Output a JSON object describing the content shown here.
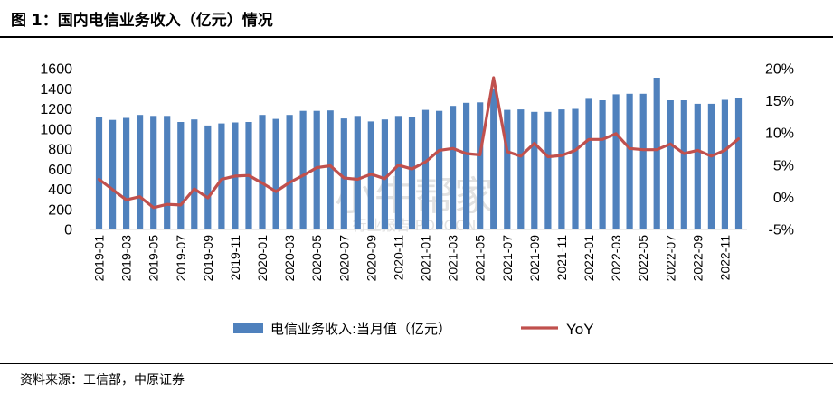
{
  "figure": {
    "title": "图 1：国内电信业务收入（亿元）情况",
    "source": "资料来源：工信部，中原证券",
    "watermark_main": "小牛帮家",
    "watermark_sub": "行业报告 POPOCN"
  },
  "colors": {
    "bar": "#4f81bd",
    "line": "#c0504d",
    "axis": "#d9d9d9"
  },
  "chart_data": {
    "type": "bar+line",
    "categories": [
      "2019-01",
      "2019-02",
      "2019-03",
      "2019-04",
      "2019-05",
      "2019-06",
      "2019-07",
      "2019-08",
      "2019-09",
      "2019-10",
      "2019-11",
      "2019-12",
      "2020-01",
      "2020-02",
      "2020-03",
      "2020-04",
      "2020-05",
      "2020-06",
      "2020-07",
      "2020-08",
      "2020-09",
      "2020-10",
      "2020-11",
      "2020-12",
      "2021-01",
      "2021-02",
      "2021-03",
      "2021-04",
      "2021-05",
      "2021-06",
      "2021-07",
      "2021-08",
      "2021-09",
      "2021-10",
      "2021-11",
      "2021-12",
      "2022-01",
      "2022-02",
      "2022-03",
      "2022-04",
      "2022-05",
      "2022-06",
      "2022-07",
      "2022-08",
      "2022-09",
      "2022-10",
      "2022-11",
      "2022-12"
    ],
    "x_tick_labels": [
      "2019-01",
      "2019-03",
      "2019-05",
      "2019-07",
      "2019-09",
      "2019-11",
      "2020-01",
      "2020-03",
      "2020-05",
      "2020-07",
      "2020-09",
      "2020-11",
      "2021-01",
      "2021-03",
      "2021-05",
      "2021-07",
      "2021-09",
      "2021-11",
      "2022-01",
      "2022-03",
      "2022-05",
      "2022-07",
      "2022-09",
      "2022-11"
    ],
    "series": [
      {
        "name": "电信业务收入:当月值（亿元）",
        "type": "bar",
        "axis": "left",
        "values": [
          1115,
          1090,
          1110,
          1140,
          1130,
          1130,
          1070,
          1095,
          1035,
          1055,
          1065,
          1070,
          1140,
          1100,
          1140,
          1180,
          1180,
          1185,
          1105,
          1130,
          1075,
          1095,
          1130,
          1115,
          1190,
          1180,
          1230,
          1260,
          1265,
          1395,
          1190,
          1195,
          1170,
          1170,
          1195,
          1200,
          1300,
          1285,
          1345,
          1350,
          1350,
          1510,
          1285,
          1285,
          1250,
          1250,
          1290,
          1305
        ]
      },
      {
        "name": "YoY",
        "type": "line",
        "axis": "right",
        "values": [
          2.8,
          1.2,
          -0.4,
          0.1,
          -1.6,
          -1.1,
          -1.2,
          1.3,
          -0.1,
          2.8,
          3.3,
          3.4,
          2.2,
          0.9,
          2.3,
          3.4,
          4.6,
          4.9,
          3.0,
          2.8,
          3.6,
          2.9,
          5.0,
          4.4,
          5.5,
          7.3,
          7.6,
          6.8,
          6.6,
          18.6,
          7.1,
          6.4,
          8.4,
          6.3,
          6.5,
          7.3,
          9.0,
          9.0,
          9.9,
          7.6,
          7.4,
          7.4,
          8.3,
          6.8,
          7.3,
          6.4,
          7.3,
          9.1
        ]
      }
    ],
    "y_left": {
      "min": 0,
      "max": 1600,
      "ticks": [
        "0",
        "200",
        "400",
        "600",
        "800",
        "1000",
        "1200",
        "1400",
        "1600"
      ]
    },
    "y_right": {
      "min": -5,
      "max": 20,
      "ticks": [
        "-5%",
        "0%",
        "5%",
        "10%",
        "15%",
        "20%"
      ]
    },
    "legend": {
      "position": "bottom",
      "entries": [
        "电信业务收入:当月值（亿元）",
        "YoY"
      ]
    },
    "grid": false
  }
}
